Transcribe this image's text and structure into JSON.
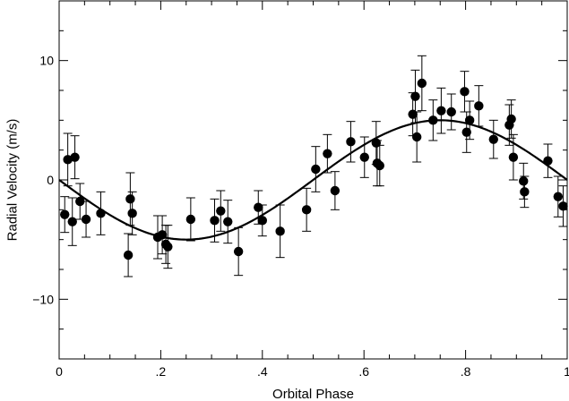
{
  "chart_data": {
    "type": "scatter",
    "title": "",
    "xlabel": "Orbital Phase",
    "ylabel": "Radial Velocity (m/s)",
    "xlim": [
      0,
      1
    ],
    "ylim": [
      -15,
      15
    ],
    "x_ticks": [
      {
        "value": 0,
        "label": "0"
      },
      {
        "value": 0.2,
        "label": ".2"
      },
      {
        "value": 0.4,
        "label": ".4"
      },
      {
        "value": 0.6,
        "label": ".6"
      },
      {
        "value": 0.8,
        "label": ".8"
      },
      {
        "value": 1,
        "label": "1"
      }
    ],
    "y_ticks": [
      {
        "value": -10,
        "label": "−10"
      },
      {
        "value": 0,
        "label": "0"
      },
      {
        "value": 10,
        "label": "10"
      }
    ],
    "grid": false,
    "legend": "none",
    "series": [
      {
        "kind": "points_with_error_bars",
        "x": [
          0.011,
          0.017,
          0.026,
          0.031,
          0.041,
          0.053,
          0.082,
          0.136,
          0.14,
          0.144,
          0.194,
          0.203,
          0.21,
          0.214,
          0.259,
          0.306,
          0.318,
          0.332,
          0.353,
          0.392,
          0.4,
          0.435,
          0.487,
          0.505,
          0.528,
          0.543,
          0.574,
          0.601,
          0.624,
          0.626,
          0.631,
          0.696,
          0.701,
          0.704,
          0.714,
          0.736,
          0.752,
          0.772,
          0.798,
          0.802,
          0.808,
          0.826,
          0.855,
          0.886,
          0.89,
          0.894,
          0.914,
          0.916,
          0.962,
          0.982,
          0.992
        ],
        "y": [
          -2.9,
          1.7,
          -3.5,
          1.9,
          -1.8,
          -3.3,
          -2.8,
          -6.3,
          -1.6,
          -2.8,
          -4.8,
          -4.6,
          -5.4,
          -5.6,
          -3.3,
          -3.4,
          -2.6,
          -3.5,
          -6.0,
          -2.3,
          -3.4,
          -4.3,
          -2.5,
          0.9,
          2.2,
          -0.9,
          3.2,
          1.9,
          3.1,
          1.4,
          1.2,
          5.5,
          7.0,
          3.6,
          8.1,
          5.0,
          5.8,
          5.7,
          7.4,
          4.0,
          5.0,
          6.2,
          3.4,
          4.6,
          5.1,
          1.9,
          -0.1,
          -1.0,
          1.6,
          -1.4,
          -2.2
        ],
        "err": [
          1.5,
          2.2,
          2.0,
          1.8,
          1.5,
          1.5,
          1.8,
          1.8,
          2.2,
          1.8,
          1.8,
          1.6,
          1.6,
          1.8,
          1.8,
          1.8,
          1.7,
          1.8,
          2.0,
          1.4,
          1.3,
          2.2,
          1.8,
          1.9,
          1.6,
          1.6,
          1.7,
          1.7,
          1.8,
          1.9,
          1.7,
          1.8,
          2.2,
          2.1,
          2.3,
          1.7,
          1.9,
          1.5,
          1.7,
          1.7,
          1.6,
          1.7,
          1.6,
          1.7,
          1.6,
          1.9,
          1.5,
          1.3,
          1.4,
          1.7,
          1.7
        ],
        "color": "#000000"
      },
      {
        "kind": "fit_curve",
        "model": "sinusoid",
        "amplitude": 5.0,
        "period_phase": 1.0,
        "peak_phase": 0.75,
        "color": "#000000"
      }
    ]
  }
}
